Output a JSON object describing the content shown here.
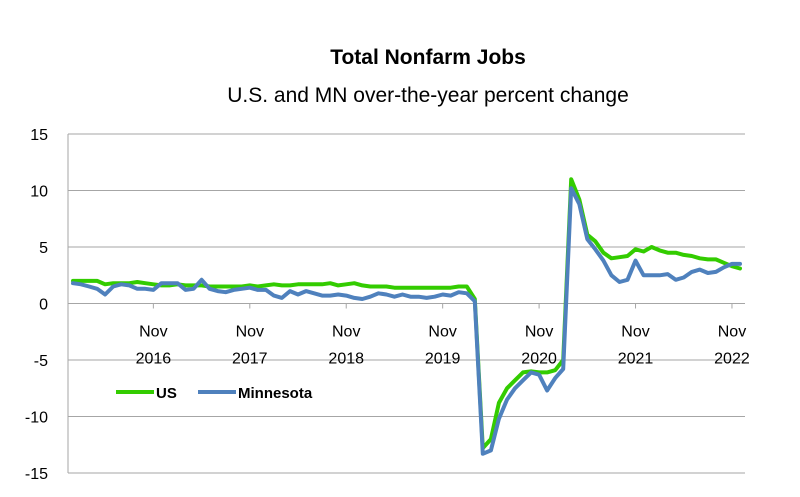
{
  "chart_data": {
    "type": "line",
    "title": "Total Nonfarm Jobs",
    "subtitle": "U.S. and MN over-the-year percent change",
    "xlabel": "",
    "ylabel": "",
    "ylim": [
      -15,
      15
    ],
    "y_ticks": [
      "15",
      "10",
      "5",
      "0",
      "-5",
      "-10",
      "-15"
    ],
    "x_tick_labels": [
      {
        "line1": "Nov",
        "line2": "2016",
        "month_index": 10
      },
      {
        "line1": "Nov",
        "line2": "2017",
        "month_index": 22
      },
      {
        "line1": "Nov",
        "line2": "2018",
        "month_index": 34
      },
      {
        "line1": "Nov",
        "line2": "2019",
        "month_index": 46
      },
      {
        "line1": "Nov",
        "line2": "2020",
        "month_index": 58
      },
      {
        "line1": "Nov",
        "line2": "2021",
        "month_index": 70
      },
      {
        "line1": "Nov",
        "line2": "2022",
        "month_index": 82
      }
    ],
    "x_start": "2016-01",
    "x_end": "2022-11",
    "grid": "horizontal",
    "legend_position": "bottom-left",
    "series": [
      {
        "name": "US",
        "color": "#33cc00",
        "values": [
          2.0,
          2.0,
          2.0,
          2.0,
          1.7,
          1.8,
          1.8,
          1.8,
          1.9,
          1.8,
          1.7,
          1.6,
          1.6,
          1.7,
          1.6,
          1.6,
          1.6,
          1.5,
          1.5,
          1.5,
          1.5,
          1.5,
          1.6,
          1.5,
          1.6,
          1.7,
          1.6,
          1.6,
          1.7,
          1.7,
          1.7,
          1.7,
          1.8,
          1.6,
          1.7,
          1.8,
          1.6,
          1.5,
          1.5,
          1.5,
          1.4,
          1.4,
          1.4,
          1.4,
          1.4,
          1.4,
          1.4,
          1.4,
          1.5,
          1.5,
          0.4,
          -12.8,
          -12.0,
          -8.8,
          -7.5,
          -6.8,
          -6.1,
          -6.0,
          -6.1,
          -6.1,
          -5.9,
          -5.0,
          11.0,
          9.2,
          6.1,
          5.5,
          4.5,
          4.0,
          4.1,
          4.2,
          4.8,
          4.6,
          5.0,
          4.7,
          4.5,
          4.5,
          4.3,
          4.2,
          4.0,
          3.9,
          3.9,
          3.6,
          3.3,
          3.1
        ]
      },
      {
        "name": "Minnesota",
        "color": "#4f81bd",
        "values": [
          1.8,
          1.7,
          1.5,
          1.3,
          0.8,
          1.5,
          1.7,
          1.6,
          1.3,
          1.3,
          1.2,
          1.8,
          1.8,
          1.8,
          1.2,
          1.3,
          2.1,
          1.3,
          1.1,
          1.0,
          1.2,
          1.3,
          1.4,
          1.2,
          1.2,
          0.7,
          0.5,
          1.1,
          0.8,
          1.1,
          0.9,
          0.7,
          0.7,
          0.8,
          0.7,
          0.5,
          0.4,
          0.6,
          0.9,
          0.8,
          0.6,
          0.8,
          0.6,
          0.6,
          0.5,
          0.6,
          0.8,
          0.7,
          1.0,
          0.9,
          0.2,
          -13.3,
          -13.0,
          -10.2,
          -8.5,
          -7.5,
          -6.8,
          -6.1,
          -6.3,
          -7.7,
          -6.6,
          -5.8,
          10.2,
          8.8,
          5.7,
          4.8,
          3.8,
          2.5,
          1.9,
          2.1,
          3.8,
          2.5,
          2.5,
          2.5,
          2.6,
          2.1,
          2.3,
          2.8,
          3.0,
          2.7,
          2.8,
          3.2,
          3.5,
          3.5
        ]
      }
    ]
  }
}
